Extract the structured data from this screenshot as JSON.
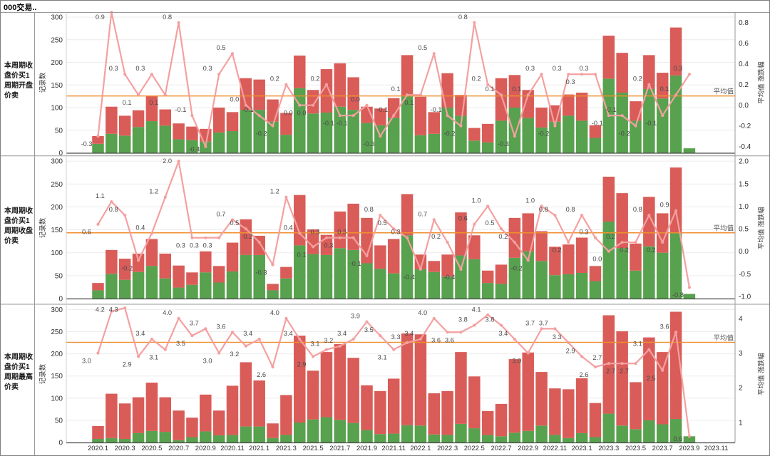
{
  "title": "000交易..",
  "axis": {
    "x_labels": [
      "2020.1",
      "2020.3",
      "2020.5",
      "2020.7",
      "2020.9",
      "2020.11",
      "2021.1",
      "2021.3",
      "2021.5",
      "2021.7",
      "2021.9",
      "2021.11",
      "2022.1",
      "2022.3",
      "2022.5",
      "2022.7",
      "2022.9",
      "2022.11",
      "2023.1",
      "2023.3",
      "2023.5",
      "2023.7",
      "2023.9",
      "2023.11"
    ],
    "left_axis_title": "记录数",
    "right_axis_title": "平均值 涨跌幅",
    "avg_label": "平均值",
    "left_ticks": [
      300,
      250,
      200,
      150,
      100,
      50,
      0
    ]
  },
  "colors": {
    "bar_red": "#d95c58",
    "bar_green": "#58a14e",
    "line_pink": "#f4a0a0",
    "avg_orange": "#f08f2e",
    "label_text": "#4a4a4a",
    "axis_text": "#303030",
    "grid": "#ececec",
    "border": "#9a9a9a"
  },
  "chart_data": [
    {
      "type": "bar",
      "row_label": "本周期收\n盘价买1\n周期开盘\n价卖",
      "right_ticks": [
        0.8,
        0.6,
        0.4,
        0.2,
        0.0,
        -0.2,
        -0.4
      ],
      "right_tick_decimals": 1,
      "average": 0.09,
      "series": [
        {
          "name": "green",
          "values": [
            20,
            42,
            38,
            57,
            70,
            60,
            30,
            28,
            25,
            45,
            48,
            95,
            95,
            69,
            40,
            143,
            87,
            89,
            102,
            95,
            66,
            61,
            77,
            126,
            39,
            42,
            100,
            82,
            27,
            23,
            71,
            100,
            77,
            56,
            69,
            82,
            71,
            33,
            164,
            133,
            71,
            141,
            120,
            171,
            10,
            0,
            0
          ]
        },
        {
          "name": "red",
          "values": [
            17,
            60,
            44,
            37,
            56,
            36,
            35,
            30,
            28,
            55,
            42,
            70,
            67,
            49,
            48,
            72,
            52,
            96,
            96,
            72,
            36,
            37,
            44,
            90,
            85,
            48,
            76,
            46,
            28,
            41,
            94,
            72,
            62,
            44,
            36,
            47,
            62,
            28,
            95,
            88,
            43,
            75,
            57,
            106,
            0,
            0,
            0
          ]
        }
      ],
      "line_values": [
        -0.3,
        0.9,
        0.3,
        0.1,
        0.3,
        0.1,
        0.8,
        -0.1,
        -0.4,
        0.3,
        0.5,
        0.0,
        -0.1,
        -0.2,
        0.2,
        0.0,
        0.0,
        0.2,
        -0.1,
        -0.1,
        0.0,
        -0.3,
        -0.1,
        0.1,
        0.1,
        0.5,
        -0.1,
        -0.2,
        0.8,
        0.2,
        0.1,
        -0.3,
        0.1,
        0.3,
        -0.2,
        0.3,
        0.3,
        0.3,
        -0.1,
        -0.1,
        -0.2,
        0.2,
        -0.1,
        0.1,
        0.3,
        null,
        null
      ]
    },
    {
      "type": "bar",
      "row_label": "本周期收\n盘价买1\n周期收盘\n价卖",
      "right_ticks": [
        2.0,
        1.5,
        1.0,
        0.5,
        0.0,
        -0.5,
        -1.0
      ],
      "right_tick_decimals": 1,
      "average": 0.41,
      "series": [
        {
          "name": "green",
          "values": [
            18,
            54,
            41,
            58,
            71,
            44,
            24,
            30,
            57,
            35,
            59,
            95,
            95,
            18,
            44,
            116,
            97,
            95,
            110,
            106,
            77,
            65,
            55,
            138,
            64,
            58,
            48,
            94,
            86,
            34,
            32,
            89,
            103,
            82,
            51,
            53,
            56,
            38,
            168,
            110,
            61,
            114,
            100,
            143,
            10,
            0,
            0
          ]
        },
        {
          "name": "red",
          "values": [
            16,
            52,
            46,
            40,
            59,
            54,
            48,
            27,
            46,
            36,
            63,
            78,
            42,
            14,
            25,
            110,
            54,
            44,
            80,
            101,
            99,
            51,
            75,
            90,
            32,
            24,
            48,
            94,
            52,
            27,
            42,
            87,
            83,
            65,
            62,
            65,
            77,
            33,
            98,
            120,
            59,
            108,
            86,
            143,
            0,
            0,
            0
          ]
        }
      ],
      "line_values": [
        0.6,
        1.1,
        0.8,
        -0.2,
        0.4,
        1.2,
        2.0,
        0.3,
        0.3,
        0.3,
        0.7,
        0.5,
        0.2,
        -0.3,
        1.2,
        0.4,
        0.1,
        0.3,
        0.3,
        0.3,
        -0.1,
        0.8,
        0.5,
        0.3,
        -0.4,
        0.7,
        0.2,
        -0.4,
        0.6,
        1.0,
        0.5,
        0.2,
        -0.2,
        1.0,
        0.8,
        0.2,
        0.8,
        0.3,
        0.0,
        0.2,
        0.2,
        0.8,
        0.2,
        0.9,
        -0.8,
        null,
        null
      ]
    },
    {
      "type": "bar",
      "row_label": "本周期收\n盘价买1\n周期最高\n价卖",
      "right_ticks": [
        4,
        3,
        2,
        1
      ],
      "right_tick_decimals": 0,
      "average": 3.31,
      "series": [
        {
          "name": "green",
          "values": [
            8,
            10,
            8,
            21,
            26,
            24,
            5,
            12,
            25,
            16,
            17,
            36,
            36,
            10,
            17,
            45,
            52,
            57,
            51,
            44,
            28,
            19,
            20,
            39,
            38,
            18,
            17,
            42,
            32,
            17,
            14,
            22,
            26,
            38,
            17,
            10,
            21,
            12,
            65,
            38,
            30,
            50,
            41,
            53,
            14,
            0,
            0
          ]
        },
        {
          "name": "red",
          "values": [
            29,
            100,
            80,
            81,
            109,
            78,
            67,
            44,
            83,
            56,
            111,
            145,
            104,
            33,
            90,
            196,
            110,
            147,
            171,
            147,
            101,
            97,
            124,
            207,
            206,
            93,
            99,
            162,
            117,
            54,
            73,
            166,
            177,
            121,
            105,
            110,
            124,
            77,
            222,
            213,
            106,
            187,
            163,
            242,
            0,
            0,
            0
          ]
        }
      ],
      "line_values": [
        3.0,
        4.2,
        4.3,
        2.9,
        3.4,
        3.1,
        4.0,
        3.5,
        3.7,
        3.0,
        3.6,
        3.2,
        3.4,
        2.6,
        4.0,
        3.4,
        2.9,
        3.1,
        3.2,
        3.4,
        3.9,
        3.5,
        3.1,
        3.3,
        3.4,
        4.0,
        3.6,
        3.6,
        3.8,
        4.1,
        3.8,
        3.4,
        3.0,
        3.7,
        3.7,
        3.3,
        2.9,
        2.6,
        2.7,
        2.7,
        2.7,
        3.1,
        2.5,
        3.6,
        0.6,
        null,
        null
      ]
    }
  ]
}
